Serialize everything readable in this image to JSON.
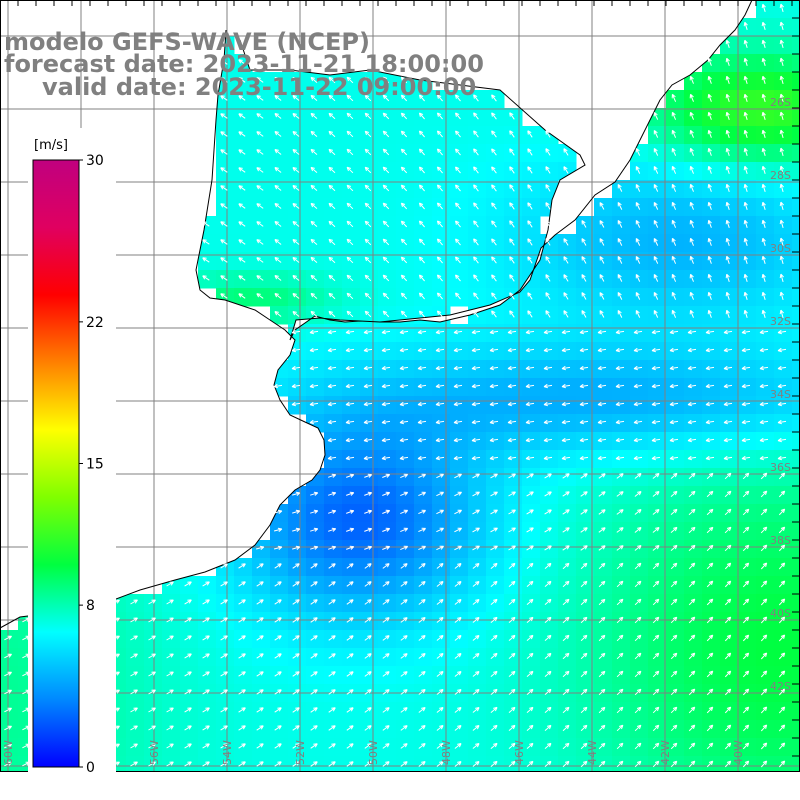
{
  "header": {
    "model": "modelo GEFS-WAVE (NCEP)",
    "forecast": "forecast date: 2023-11-21 18:00:00",
    "valid": "valid date: 2023-11-22 09:00:00"
  },
  "colorbar": {
    "unit": "[m/s]",
    "ticks": [
      "30",
      "22",
      "15",
      "8",
      "0"
    ],
    "tick_values": [
      30,
      22,
      15,
      8,
      0
    ],
    "range": [
      0,
      30
    ],
    "stops": [
      "#0000ff",
      "#0088ff",
      "#00ffff",
      "#00ff40",
      "#80ff00",
      "#ffff00",
      "#ff8000",
      "#ff0000",
      "#e00060",
      "#c0007f"
    ]
  },
  "map": {
    "lon_labels": [
      "60W",
      "58W",
      "56W",
      "54W",
      "52W",
      "50W",
      "48W",
      "46W",
      "44W",
      "42W",
      "40W"
    ],
    "lat_labels": [
      "26S",
      "28S",
      "30S",
      "32S",
      "34S",
      "36S",
      "38S",
      "40S",
      "42S"
    ],
    "land_color": "#ffffff",
    "grid_color": "#808080",
    "vector_color": "#ffffff",
    "field": "wind speed and direction over ocean"
  }
}
